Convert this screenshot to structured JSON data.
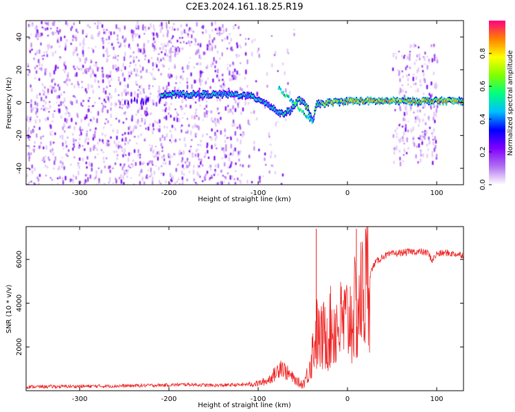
{
  "figure": {
    "title": "C2E3.2024.161.18.25.R19"
  },
  "chart_data": [
    {
      "type": "heatmap",
      "title": "C2E3.2024.161.18.25.R19",
      "xlabel": "Height of straight line (km)",
      "ylabel": "Frequency (Hz)",
      "xlim": [
        -360,
        130
      ],
      "ylim": [
        -50,
        50
      ],
      "xticks": [
        -300,
        -200,
        -100,
        0,
        100
      ],
      "yticks": [
        -40,
        -20,
        0,
        20,
        40
      ],
      "colorbar": {
        "label": "Normalized spectral amplitude",
        "range": [
          0.0,
          1.0
        ],
        "ticks": [
          0.0,
          0.2,
          0.4,
          0.6,
          0.8
        ],
        "colormap": [
          "#ffffff",
          "#b070f0",
          "#8000ff",
          "#0000ff",
          "#00c0ff",
          "#00ff80",
          "#80ff00",
          "#ffff00",
          "#ff8000",
          "#ff0080"
        ]
      },
      "signal_trace": [
        {
          "x": -210,
          "y": 5
        },
        {
          "x": -190,
          "y": 5
        },
        {
          "x": -170,
          "y": 5
        },
        {
          "x": -150,
          "y": 5
        },
        {
          "x": -130,
          "y": 5
        },
        {
          "x": -110,
          "y": 4
        },
        {
          "x": -95,
          "y": 1
        },
        {
          "x": -85,
          "y": -3
        },
        {
          "x": -75,
          "y": -7
        },
        {
          "x": -65,
          "y": -5
        },
        {
          "x": -55,
          "y": 2
        },
        {
          "x": -45,
          "y": -3
        },
        {
          "x": -40,
          "y": -12
        },
        {
          "x": -35,
          "y": -1
        },
        {
          "x": -20,
          "y": 0
        },
        {
          "x": 0,
          "y": 1
        },
        {
          "x": 50,
          "y": 1
        },
        {
          "x": 100,
          "y": 1
        },
        {
          "x": 130,
          "y": 1
        }
      ]
    },
    {
      "type": "line",
      "xlabel": "Height of straight line (km)",
      "ylabel": "SNR (10 * v/v)",
      "xlim": [
        -360,
        130
      ],
      "ylim": [
        0,
        7500
      ],
      "xticks": [
        -300,
        -200,
        -100,
        0,
        100
      ],
      "yticks": [
        2000,
        4000,
        6000
      ],
      "series": [
        {
          "color": "#ee2222",
          "x": [
            -360,
            -300,
            -250,
            -200,
            -180,
            -150,
            -120,
            -100,
            -90,
            -80,
            -75,
            -70,
            -60,
            -55,
            -50,
            -45,
            -40,
            -35,
            -30,
            -20,
            -10,
            0,
            10,
            20,
            30,
            40,
            50,
            60,
            70,
            80,
            90,
            95,
            100,
            110,
            120,
            130
          ],
          "y": [
            180,
            200,
            220,
            260,
            290,
            240,
            270,
            330,
            450,
            800,
            1200,
            900,
            550,
            350,
            300,
            700,
            1600,
            2600,
            2300,
            2800,
            3000,
            3200,
            3700,
            4700,
            5800,
            6150,
            6250,
            6300,
            6350,
            6350,
            6300,
            5950,
            6250,
            6300,
            6250,
            6200
          ]
        }
      ],
      "spikes": [
        {
          "x": -35,
          "y": 7400
        },
        {
          "x": 10,
          "y": 7400
        }
      ]
    }
  ]
}
